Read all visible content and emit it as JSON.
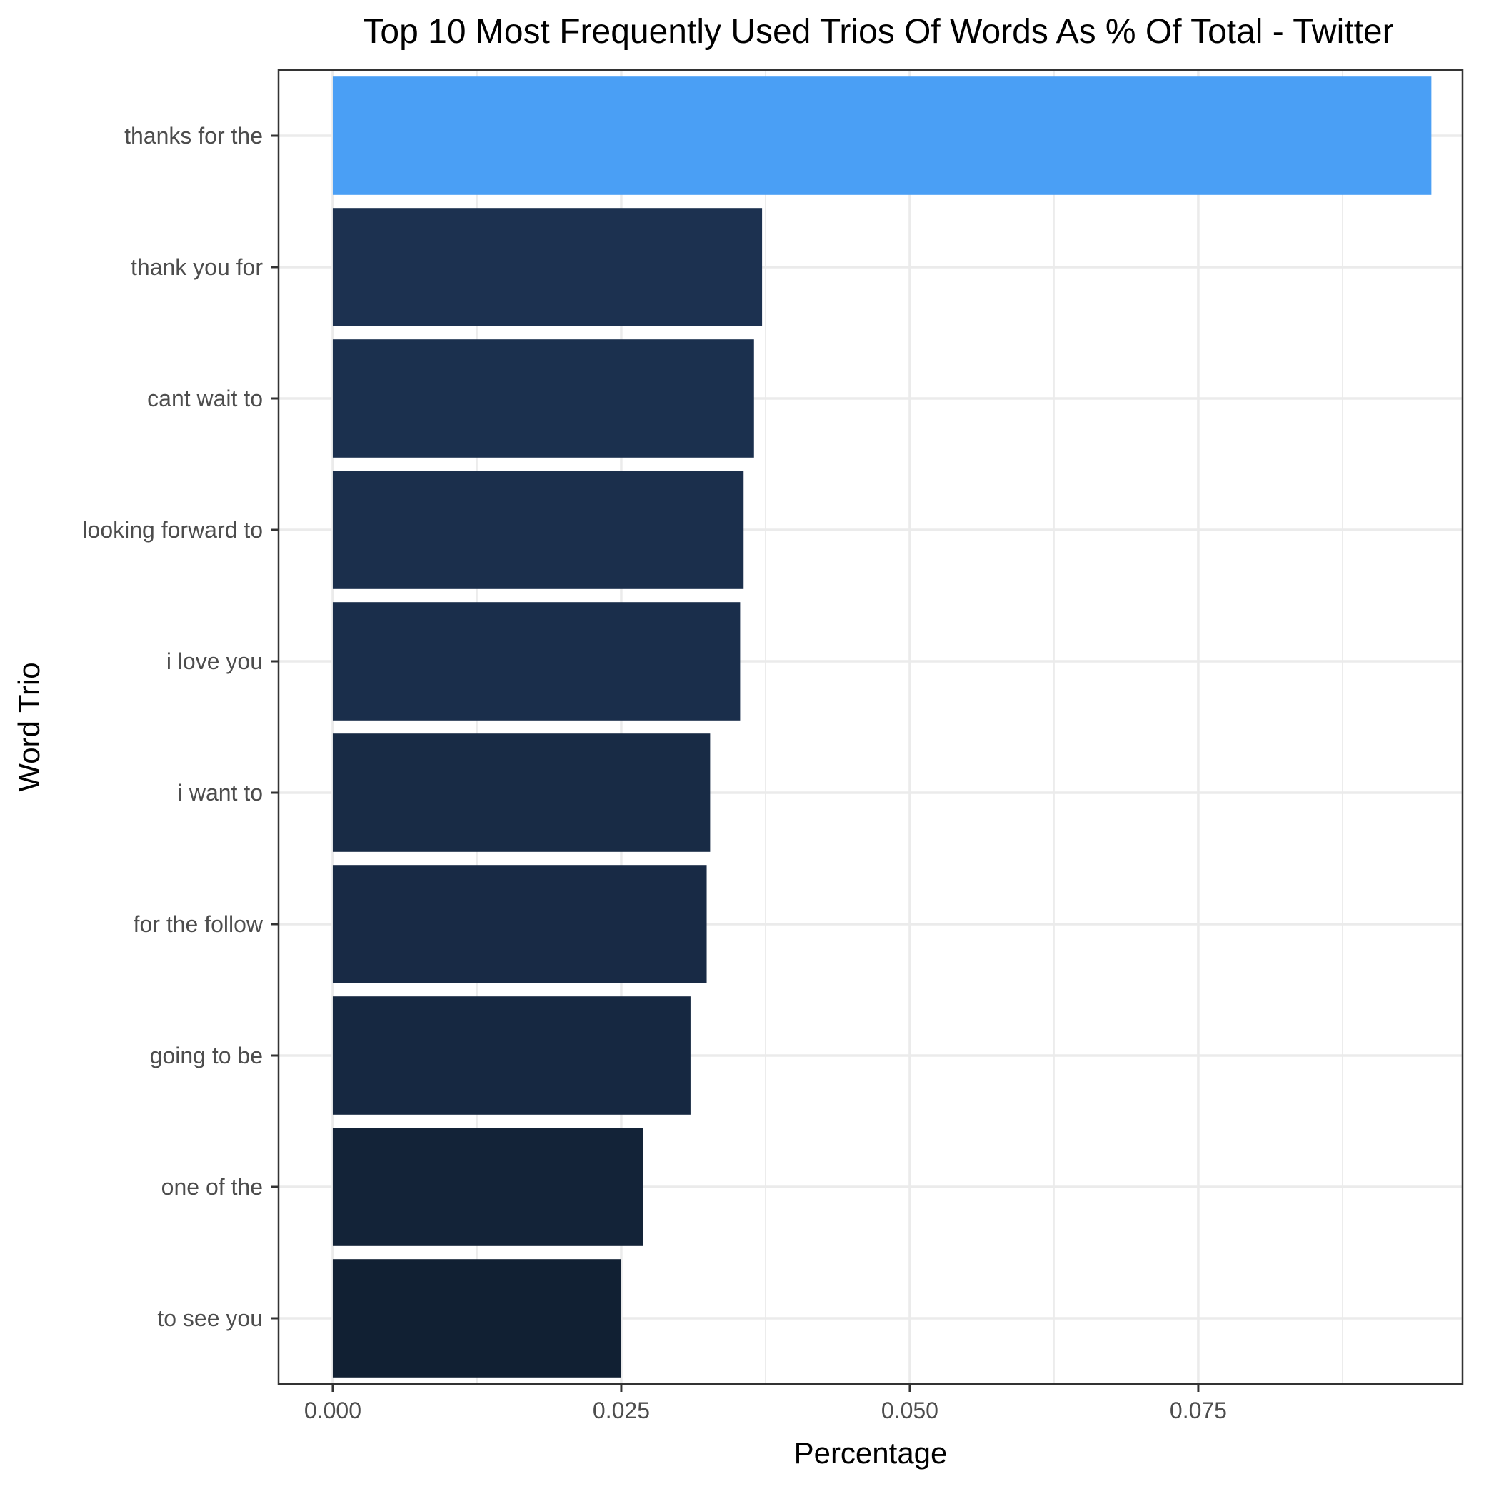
{
  "chart_data": {
    "type": "bar",
    "orientation": "horizontal",
    "title": "Top 10 Most Frequently Used Trios Of Words As % Of Total - Twitter",
    "xlabel": "Percentage",
    "ylabel": "Word Trio",
    "categories": [
      "thanks for the",
      "thank you for",
      "cant wait to",
      "looking forward to",
      "i love you",
      "i want to",
      "for the follow",
      "going to be",
      "one of the",
      "to see you"
    ],
    "values": [
      0.0952,
      0.0372,
      0.0365,
      0.0356,
      0.0353,
      0.0327,
      0.0324,
      0.031,
      0.0269,
      0.025
    ],
    "xlim": [
      -0.0047,
      0.0979
    ],
    "x_ticks": [
      0.0,
      0.025,
      0.05,
      0.075
    ],
    "x_tick_labels": [
      "0.000",
      "0.025",
      "0.050",
      "0.075"
    ],
    "grid": true,
    "legend": "none",
    "colors": {
      "highlight": "#4a9ff5",
      "gradient_high": "#1c3150",
      "gradient_low": "#112033",
      "grid": "#ebebeb",
      "border": "#333333"
    }
  }
}
